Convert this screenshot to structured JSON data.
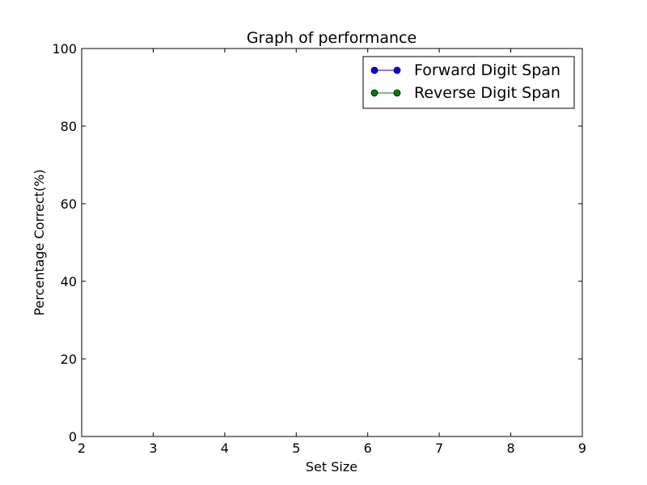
{
  "chart_data": {
    "type": "line",
    "title": "Graph of performance",
    "xlabel": "Set Size",
    "ylabel": "Percentage Correct(%)",
    "xlim": [
      2,
      9
    ],
    "ylim": [
      0,
      100
    ],
    "xticks": [
      2,
      3,
      4,
      5,
      6,
      7,
      8,
      9
    ],
    "yticks": [
      0,
      20,
      40,
      60,
      80,
      100
    ],
    "grid": false,
    "legend_position": "top-right",
    "series": [
      {
        "name": "Forward Digit Span",
        "color": "#0000ff",
        "marker": "circle",
        "x": [],
        "y": []
      },
      {
        "name": "Reverse Digit Span",
        "color": "#008000",
        "marker": "circle",
        "x": [],
        "y": []
      }
    ]
  }
}
